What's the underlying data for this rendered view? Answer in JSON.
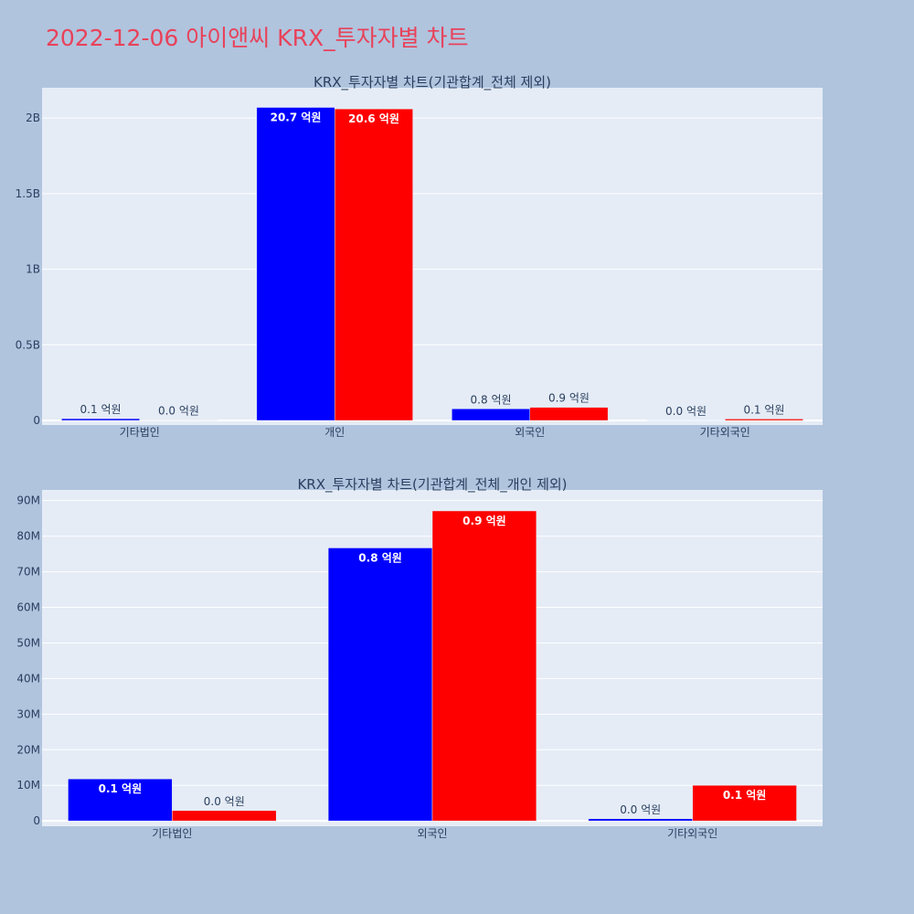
{
  "title": "2022-12-06 아이앤씨 KRX_투자자별 차트",
  "colors": {
    "background": "#b0c4de",
    "plot_bg": "#e5ecf6",
    "title": "#e8425a",
    "buy": "#0000ff",
    "sell": "#ff0000"
  },
  "chart_data": [
    {
      "type": "bar",
      "title": "KRX_투자자별 차트(기관합계_전체 제외)",
      "categories": [
        "기타법인",
        "개인",
        "외국인",
        "기타외국인"
      ],
      "series": [
        {
          "color": "#0000ff",
          "values": [
            12000000,
            2070000000,
            77000000,
            1000000
          ],
          "labels": [
            "0.1 억원",
            "20.7 억원",
            "0.8 억원",
            "0.0 억원"
          ]
        },
        {
          "color": "#ff0000",
          "values": [
            3000000,
            2060000000,
            87000000,
            10000000
          ],
          "labels": [
            "0.0 억원",
            "20.6 억원",
            "0.9 억원",
            "0.1 억원"
          ]
        }
      ],
      "ylim": [
        -30000000,
        2200000000
      ],
      "yticks": [
        0,
        500000000,
        1000000000,
        1500000000,
        2000000000
      ],
      "ytick_labels": [
        "0",
        "0.5B",
        "1B",
        "1.5B",
        "2B"
      ],
      "grid": true,
      "legend": "none"
    },
    {
      "type": "bar",
      "title": "KRX_투자자별 차트(기관합계_전체_개인 제외)",
      "categories": [
        "기타법인",
        "외국인",
        "기타외국인"
      ],
      "series": [
        {
          "color": "#0000ff",
          "values": [
            11800000,
            76700000,
            600000
          ],
          "labels": [
            "0.1 억원",
            "0.8 억원",
            "0.0 억원"
          ]
        },
        {
          "color": "#ff0000",
          "values": [
            2900000,
            87100000,
            10000000
          ],
          "labels": [
            "0.0 억원",
            "0.9 억원",
            "0.1 억원"
          ]
        }
      ],
      "ylim": [
        -1500000,
        93000000
      ],
      "yticks": [
        0,
        10000000,
        20000000,
        30000000,
        40000000,
        50000000,
        60000000,
        70000000,
        80000000,
        90000000
      ],
      "ytick_labels": [
        "0",
        "10M",
        "20M",
        "30M",
        "40M",
        "50M",
        "60M",
        "70M",
        "80M",
        "90M"
      ],
      "grid": true,
      "legend": "none"
    }
  ]
}
